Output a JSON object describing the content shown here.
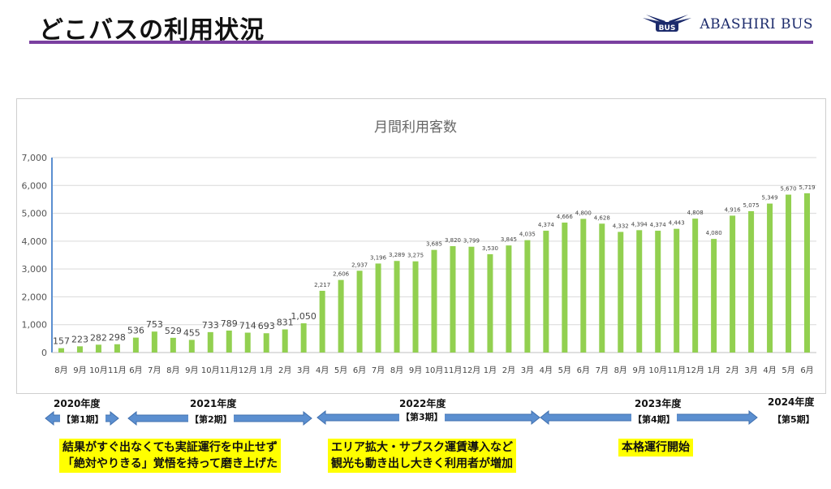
{
  "header": {
    "title": "どこバスの利用状況",
    "brand_logo_text": "BUS",
    "brand_name": "ABASHIRI BUS"
  },
  "colors": {
    "accent": "#7a3fa0",
    "bar": "#92d050",
    "arrow": "#5b8fd0",
    "highlight": "#ffff00",
    "brand": "#1b2a6b"
  },
  "chart_data": {
    "type": "bar",
    "title": "月間利用客数",
    "xlabel": "",
    "ylabel": "",
    "ylim": [
      0,
      7000
    ],
    "yticks": [
      "0",
      "1,000",
      "2,000",
      "3,000",
      "4,000",
      "5,000",
      "6,000",
      "7,000"
    ],
    "grid": true,
    "categories": [
      "8月",
      "9月",
      "10月",
      "11月",
      "6月",
      "7月",
      "8月",
      "9月",
      "10月",
      "11月",
      "12月",
      "1月",
      "2月",
      "3月",
      "4月",
      "5月",
      "6月",
      "7月",
      "8月",
      "9月",
      "10月",
      "11月",
      "12月",
      "1月",
      "2月",
      "3月",
      "4月",
      "5月",
      "6月",
      "7月",
      "8月",
      "9月",
      "10月",
      "11月",
      "12月",
      "1月",
      "2月",
      "3月",
      "4月",
      "5月",
      "6月"
    ],
    "values": [
      157,
      223,
      282,
      298,
      536,
      753,
      529,
      455,
      733,
      789,
      714,
      693,
      831,
      1050,
      2217,
      2606,
      2937,
      3196,
      3289,
      3275,
      3685,
      3820,
      3799,
      3530,
      3845,
      4035,
      4374,
      4666,
      4800,
      4628,
      4332,
      4394,
      4374,
      4443,
      4808,
      4080,
      4916,
      5075,
      5349,
      5670,
      5719
    ],
    "value_labels": [
      "157",
      "223",
      "282",
      "298",
      "536",
      "753",
      "529",
      "455",
      "733",
      "789",
      "714",
      "693",
      "831",
      "1,050",
      "2,217",
      "2,606",
      "2,937",
      "3,196",
      "3,289",
      "3,275",
      "3,685",
      "3,820",
      "3,799",
      "3,530",
      "3,845",
      "4,035",
      "4,374",
      "4,666",
      "4,800",
      "4,628",
      "4,332",
      "4,394",
      "4,374",
      "4,443",
      "4,808",
      "4,080",
      "4,916",
      "5,075",
      "5,349",
      "5,670",
      "5,719"
    ]
  },
  "fiscal_years": [
    {
      "label": "2020年度"
    },
    {
      "label": "2021年度"
    },
    {
      "label": "2022年度"
    },
    {
      "label": "2023年度"
    },
    {
      "label": "2024年度"
    }
  ],
  "periods": [
    {
      "label": "【第1期】"
    },
    {
      "label": "【第2期】"
    },
    {
      "label": "【第3期】"
    },
    {
      "label": "【第4期】"
    },
    {
      "label": "【第5期】"
    }
  ],
  "notes": [
    {
      "lines": [
        "結果がすぐ出なくても実証運行を中止せず",
        "「絶対やりきる」覚悟を持って磨き上げた"
      ]
    },
    {
      "lines": [
        "エリア拡大・サブスク運賃導入など",
        "観光も動き出し大きく利用者が増加"
      ]
    },
    {
      "lines": [
        "本格運行開始"
      ]
    }
  ]
}
